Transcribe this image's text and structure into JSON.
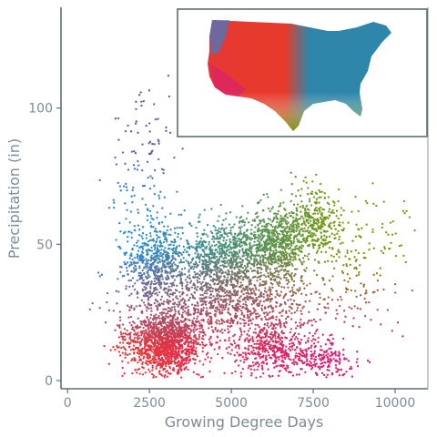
{
  "chart_data": {
    "type": "scatter",
    "title": "",
    "xlabel": "Growing Degree Days",
    "ylabel": "Precipitation (in)",
    "xlim": [
      -200,
      11000
    ],
    "ylim": [
      -3,
      137
    ],
    "xticks": [
      0,
      2500,
      5000,
      7500,
      10000
    ],
    "xtick_labels": [
      "0",
      "2500",
      "5000",
      "7500",
      "10000"
    ],
    "yticks": [
      0,
      50,
      100
    ],
    "ytick_labels": [
      "0",
      "50",
      "100"
    ],
    "grid": false,
    "legend": "none",
    "inset": "map of the contiguous United States, points colored by the same scheme",
    "colors": {
      "cool_wet": "#1e88e5",
      "blue_green": "#2e86ab",
      "olive_hot_wet": "#7a9a01",
      "purple_very_wet": "#6a51a3",
      "red_cool_dry": "#e53935",
      "magenta_hot_dry": "#d81b7a",
      "axis": "#5f6e75",
      "tick_text": "#7f8c93"
    },
    "point_clusters": [
      {
        "region": "cool-dry",
        "x_center": 3000,
        "y_center": 14,
        "count": 1400,
        "color": "#e53935"
      },
      {
        "region": "warm-dry",
        "x_center": 6200,
        "y_center": 12,
        "count": 500,
        "color": "#d81b60"
      },
      {
        "region": "hot-dry",
        "x_center": 7800,
        "y_center": 8,
        "count": 180,
        "color": "#d81b9a"
      },
      {
        "region": "cool-wet",
        "x_center": 2700,
        "y_center": 42,
        "count": 650,
        "color": "#1e88e5"
      },
      {
        "region": "temperate-wet",
        "x_center": 4800,
        "y_center": 44,
        "count": 900,
        "color": "#2e86ab"
      },
      {
        "region": "warm-wet",
        "x_center": 6300,
        "y_center": 50,
        "count": 700,
        "color": "#3a9a70"
      },
      {
        "region": "hot-wet",
        "x_center": 7500,
        "y_center": 58,
        "count": 350,
        "color": "#7a9a01"
      },
      {
        "region": "very-wet",
        "x_center": 2400,
        "y_center": 80,
        "count": 120,
        "color": "#6a51a3"
      }
    ]
  }
}
